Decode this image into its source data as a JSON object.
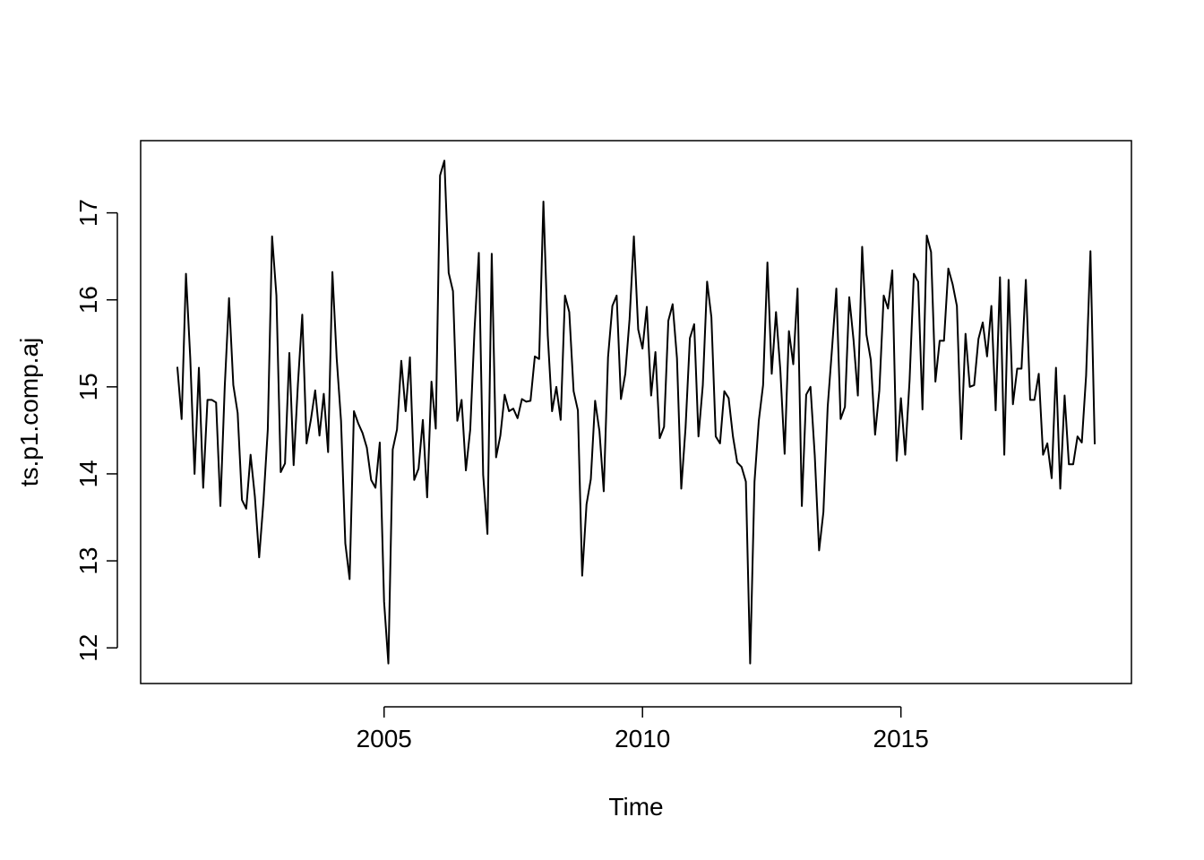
{
  "chart_data": {
    "type": "line",
    "x_label": "Time",
    "y_label": "ts.p1.comp.aj",
    "x": [
      2001,
      2001.083,
      2001.167,
      2001.25,
      2001.333,
      2001.417,
      2001.5,
      2001.583,
      2001.667,
      2001.75,
      2001.833,
      2001.917,
      2002,
      2002.083,
      2002.167,
      2002.25,
      2002.333,
      2002.417,
      2002.5,
      2002.583,
      2002.667,
      2002.75,
      2002.833,
      2002.917,
      2003,
      2003.083,
      2003.167,
      2003.25,
      2003.333,
      2003.417,
      2003.5,
      2003.583,
      2003.667,
      2003.75,
      2003.833,
      2003.917,
      2004,
      2004.083,
      2004.167,
      2004.25,
      2004.333,
      2004.417,
      2004.5,
      2004.583,
      2004.667,
      2004.75,
      2004.833,
      2004.917,
      2005,
      2005.083,
      2005.167,
      2005.25,
      2005.333,
      2005.417,
      2005.5,
      2005.583,
      2005.667,
      2005.75,
      2005.833,
      2005.917,
      2006,
      2006.083,
      2006.167,
      2006.25,
      2006.333,
      2006.417,
      2006.5,
      2006.583,
      2006.667,
      2006.75,
      2006.833,
      2006.917,
      2007,
      2007.083,
      2007.167,
      2007.25,
      2007.333,
      2007.417,
      2007.5,
      2007.583,
      2007.667,
      2007.75,
      2007.833,
      2007.917,
      2008,
      2008.083,
      2008.167,
      2008.25,
      2008.333,
      2008.417,
      2008.5,
      2008.583,
      2008.667,
      2008.75,
      2008.833,
      2008.917,
      2009,
      2009.083,
      2009.167,
      2009.25,
      2009.333,
      2009.417,
      2009.5,
      2009.583,
      2009.667,
      2009.75,
      2009.833,
      2009.917,
      2010,
      2010.083,
      2010.167,
      2010.25,
      2010.333,
      2010.417,
      2010.5,
      2010.583,
      2010.667,
      2010.75,
      2010.833,
      2010.917,
      2011,
      2011.083,
      2011.167,
      2011.25,
      2011.333,
      2011.417,
      2011.5,
      2011.583,
      2011.667,
      2011.75,
      2011.833,
      2011.917,
      2012,
      2012.083,
      2012.167,
      2012.25,
      2012.333,
      2012.417,
      2012.5,
      2012.583,
      2012.667,
      2012.75,
      2012.833,
      2012.917,
      2013,
      2013.083,
      2013.167,
      2013.25,
      2013.333,
      2013.417,
      2013.5,
      2013.583,
      2013.667,
      2013.75,
      2013.833,
      2013.917,
      2014,
      2014.083,
      2014.167,
      2014.25,
      2014.333,
      2014.417,
      2014.5,
      2014.583,
      2014.667,
      2014.75,
      2014.833,
      2014.917,
      2015,
      2015.083,
      2015.167,
      2015.25,
      2015.333,
      2015.417,
      2015.5,
      2015.583,
      2015.667,
      2015.75,
      2015.833,
      2015.917,
      2016,
      2016.083,
      2016.167,
      2016.25,
      2016.333,
      2016.417,
      2016.5,
      2016.583,
      2016.667,
      2016.75,
      2016.833,
      2016.917,
      2017,
      2017.083,
      2017.167,
      2017.25,
      2017.333,
      2017.417,
      2017.5,
      2017.583,
      2017.667,
      2017.75,
      2017.833,
      2017.917,
      2018,
      2018.083,
      2018.167,
      2018.25,
      2018.333,
      2018.417,
      2018.5,
      2018.583,
      2018.667,
      2018.75
    ],
    "series": [
      {
        "color": "#000000",
        "values": [
          15.23,
          14.63,
          16.3,
          15.33,
          14.0,
          15.22,
          13.84,
          14.85,
          14.85,
          14.82,
          13.63,
          15.0,
          16.02,
          15.02,
          14.7,
          13.7,
          13.6,
          14.22,
          13.74,
          13.04,
          13.69,
          14.51,
          16.73,
          16.05,
          14.02,
          14.12,
          15.39,
          14.1,
          15.03,
          15.83,
          14.35,
          14.62,
          14.96,
          14.44,
          14.92,
          14.25,
          16.32,
          15.33,
          14.61,
          13.2,
          12.79,
          14.72,
          14.58,
          14.47,
          14.3,
          13.93,
          13.84,
          14.36,
          12.53,
          11.82,
          14.28,
          14.51,
          15.3,
          14.72,
          15.34,
          13.93,
          14.06,
          14.62,
          13.73,
          15.06,
          14.52,
          17.43,
          17.6,
          16.31,
          16.1,
          14.61,
          14.85,
          14.04,
          14.51,
          15.66,
          16.54,
          13.99,
          13.31,
          16.53,
          14.19,
          14.44,
          14.91,
          14.72,
          14.75,
          14.64,
          14.86,
          14.83,
          14.84,
          15.35,
          15.32,
          17.13,
          15.59,
          14.72,
          15.0,
          14.62,
          16.05,
          15.86,
          14.95,
          14.73,
          12.83,
          13.65,
          13.94,
          14.84,
          14.49,
          13.8,
          15.34,
          15.93,
          16.05,
          14.86,
          15.15,
          15.78,
          16.73,
          15.66,
          15.44,
          15.92,
          14.9,
          15.4,
          14.41,
          14.54,
          15.76,
          15.95,
          15.33,
          13.83,
          14.53,
          15.56,
          15.72,
          14.43,
          15.02,
          16.21,
          15.8,
          14.43,
          14.35,
          14.95,
          14.87,
          14.43,
          14.13,
          14.08,
          13.91,
          11.82,
          13.91,
          14.61,
          15.02,
          16.43,
          15.15,
          15.86,
          15.19,
          14.23,
          15.64,
          15.26,
          16.13,
          13.63,
          14.91,
          15.0,
          14.21,
          13.12,
          13.56,
          14.77,
          15.44,
          16.13,
          14.63,
          14.77,
          16.03,
          15.54,
          14.9,
          16.61,
          15.6,
          15.31,
          14.45,
          14.96,
          16.05,
          15.9,
          16.34,
          14.15,
          14.87,
          14.22,
          15.07,
          16.3,
          16.21,
          14.74,
          16.74,
          16.55,
          15.06,
          15.53,
          15.53,
          16.36,
          16.18,
          15.93,
          14.4,
          15.61,
          15.0,
          15.02,
          15.55,
          15.74,
          15.35,
          15.93,
          14.73,
          16.26,
          14.22,
          16.23,
          14.8,
          15.21,
          15.21,
          16.23,
          14.85,
          14.85,
          15.15,
          14.22,
          14.35,
          13.95,
          15.22,
          13.83,
          14.9,
          14.11,
          14.11,
          14.43,
          14.36,
          15.13,
          16.56,
          14.34
        ]
      }
    ],
    "xlim": [
      2000.29,
      2019.46
    ],
    "ylim": [
      11.59,
      17.83
    ],
    "xticks": [
      2005,
      2010,
      2015
    ],
    "yticks": [
      12,
      13,
      14,
      15,
      16,
      17
    ],
    "grid": false
  }
}
